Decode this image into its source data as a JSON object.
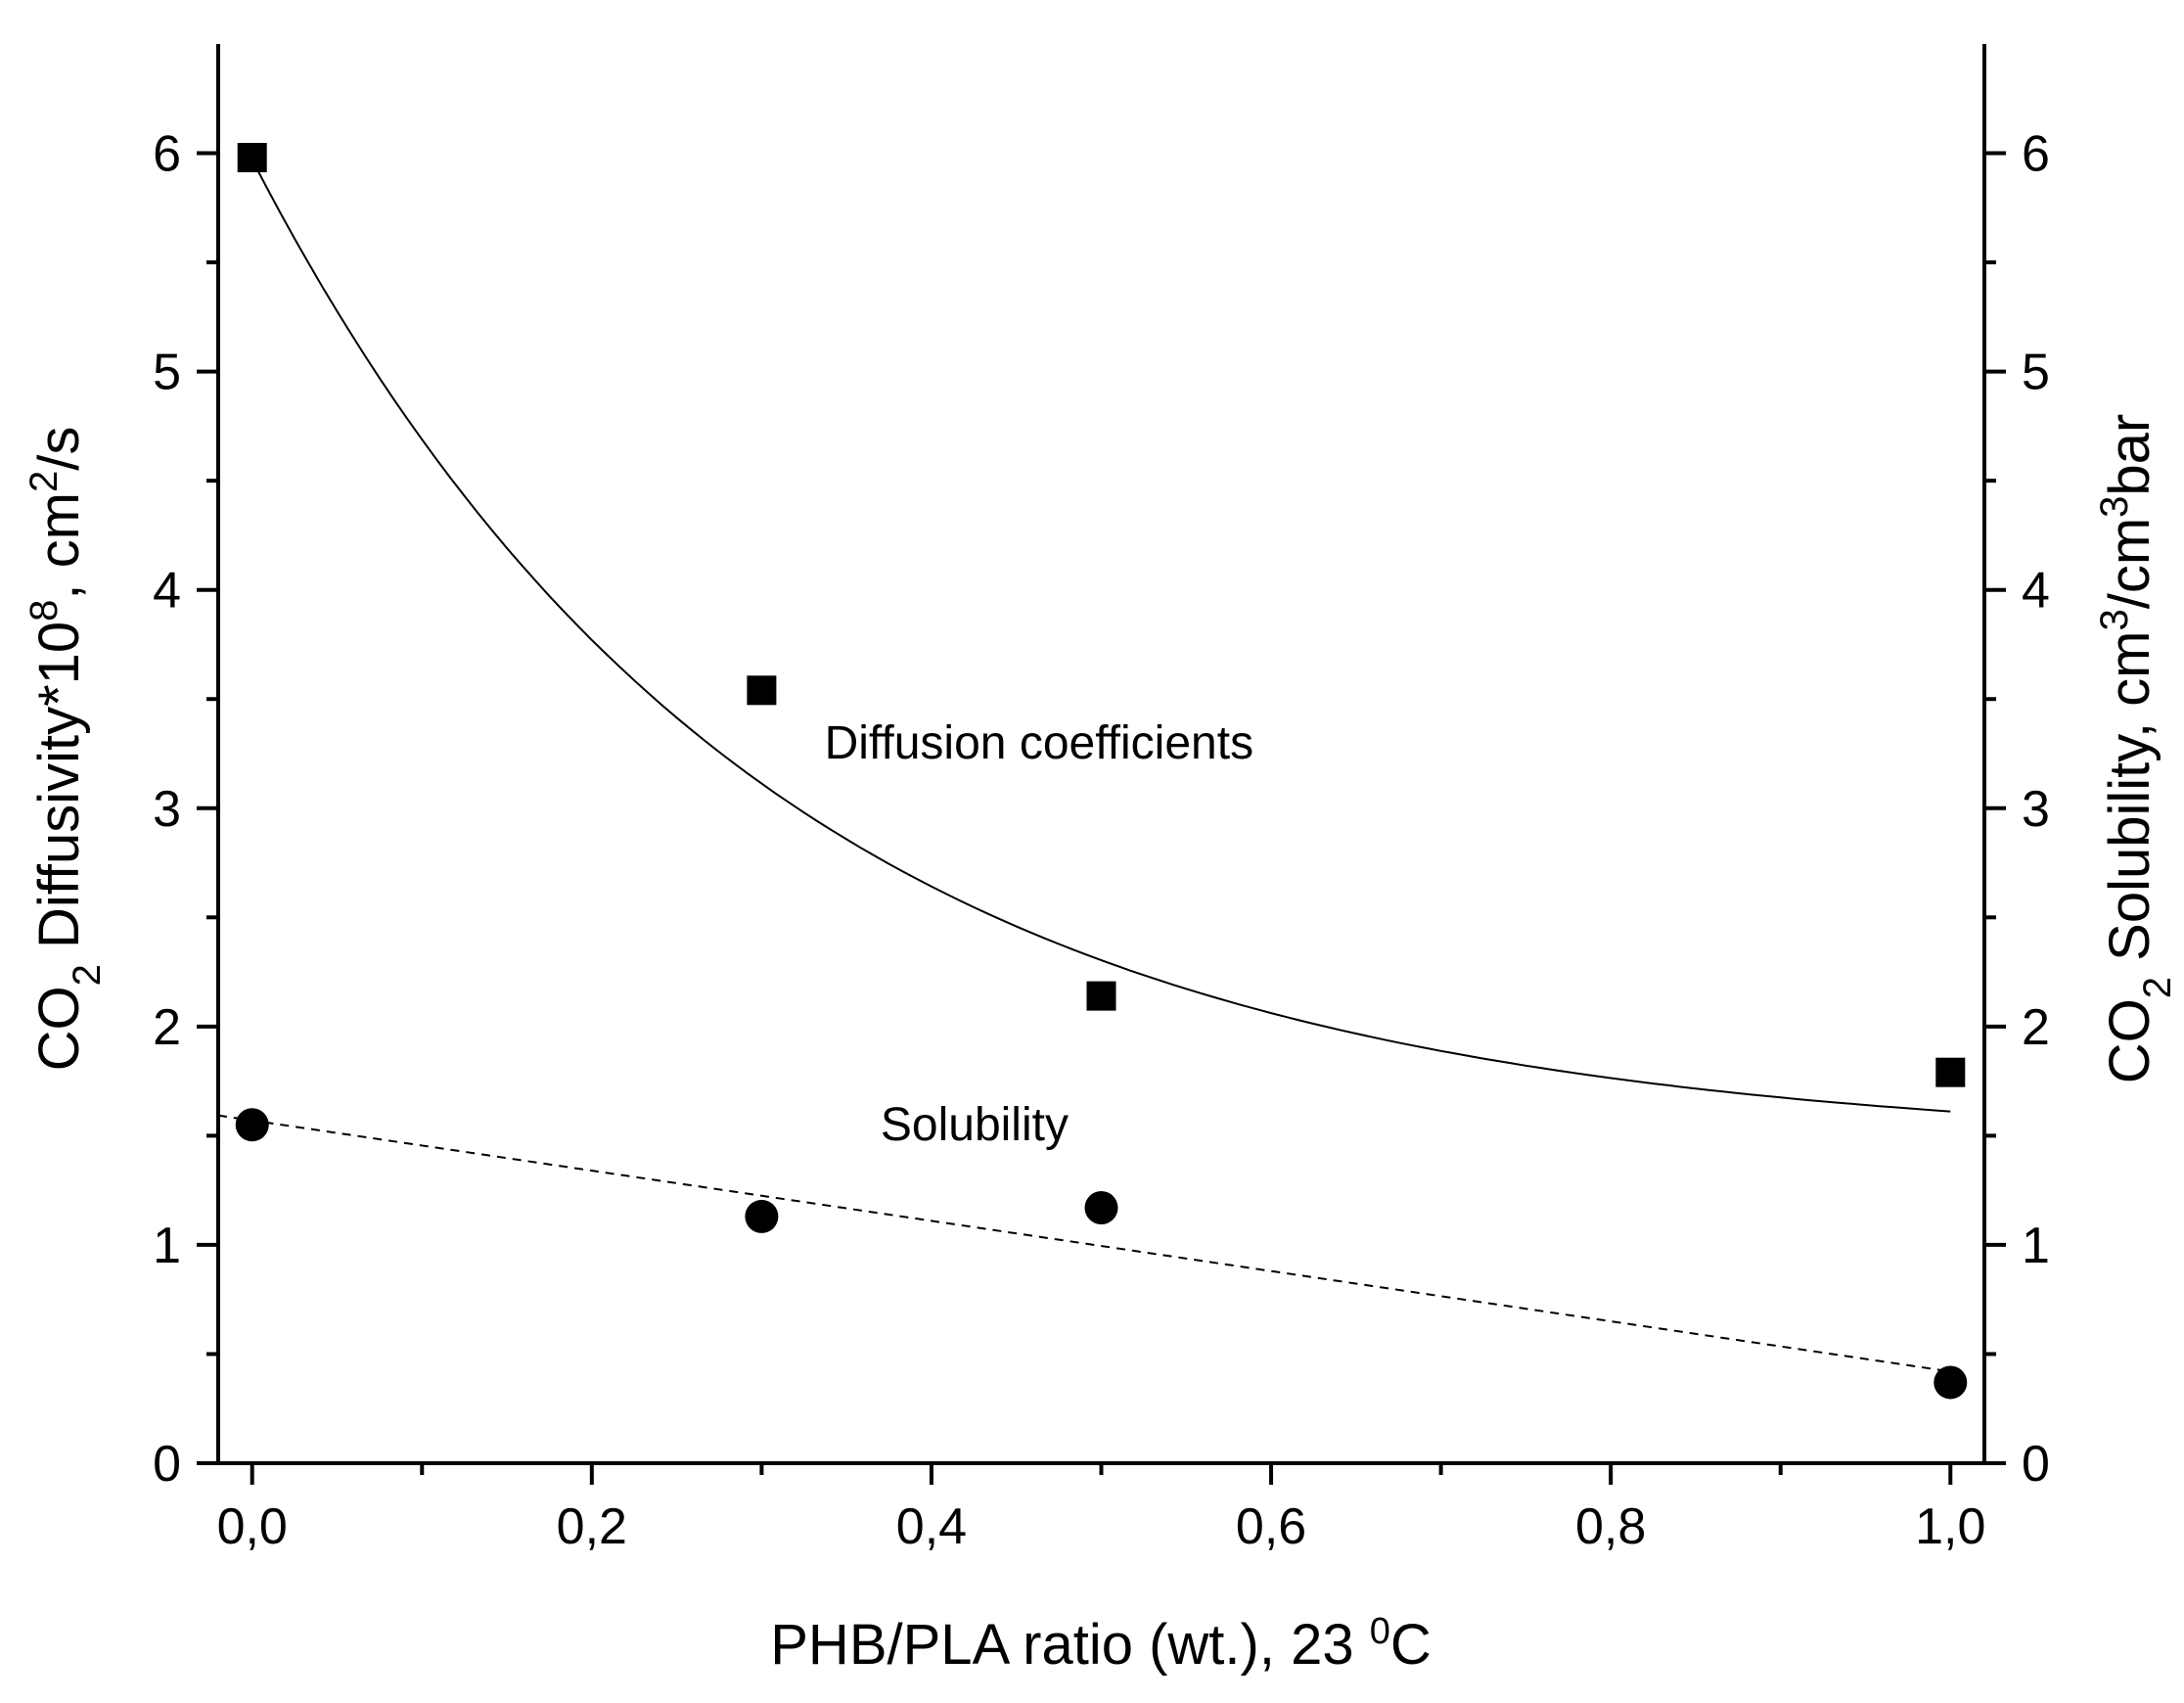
{
  "chart_data": {
    "type": "scatter",
    "x_axis": {
      "label": "PHB/PLA ratio (wt.), 23 ",
      "label_sup": "0",
      "label_tail": "C",
      "range": [
        -0.02,
        1.02
      ],
      "major_ticks": [
        0.0,
        0.2,
        0.4,
        0.6,
        0.8,
        1.0
      ],
      "tick_labels": [
        "0,0",
        "0,2",
        "0,4",
        "0,6",
        "0,8",
        "1,0"
      ],
      "minor_ticks": [
        0.1,
        0.3,
        0.5,
        0.7,
        0.9
      ]
    },
    "y_left": {
      "label_parts": {
        "a": "CO",
        "sub": "2",
        "b": " Diffusivity*10",
        "sup1": "8",
        "c": ", cm",
        "sup2": "2",
        "d": "/s"
      },
      "range": [
        0,
        6.5
      ],
      "major_ticks": [
        0,
        1,
        2,
        3,
        4,
        5,
        6
      ],
      "tick_labels": [
        "0",
        "1",
        "2",
        "3",
        "4",
        "5",
        "6"
      ],
      "minor_ticks": [
        0.5,
        1.5,
        2.5,
        3.5,
        4.5,
        5.5
      ]
    },
    "y_right": {
      "label_parts": {
        "a": "CO",
        "sub": "2",
        "b": " Solubility, cm",
        "sup1": "3",
        "c": "/cm",
        "sup2": "3",
        "d": "bar"
      },
      "range": [
        0,
        6.5
      ],
      "major_ticks": [
        0,
        1,
        2,
        3,
        4,
        5,
        6
      ],
      "tick_labels": [
        "0",
        "1",
        "2",
        "3",
        "4",
        "5",
        "6"
      ],
      "minor_ticks": [
        0.5,
        1.5,
        2.5,
        3.5,
        4.5,
        5.5
      ]
    },
    "series": [
      {
        "name": "Diffusion coefficients",
        "marker": "square",
        "axis": "left",
        "x": [
          0.0,
          0.3,
          0.5,
          1.0
        ],
        "y": [
          5.98,
          3.54,
          2.14,
          1.79
        ],
        "fit": {
          "style": "solid",
          "model": "exponential",
          "y0": 1.45,
          "A": 4.52,
          "t": 0.3,
          "x_range": [
            0.0,
            1.0
          ]
        }
      },
      {
        "name": "Solubility",
        "marker": "circle",
        "axis": "right",
        "x": [
          0.0,
          0.3,
          0.5,
          1.0
        ],
        "y": [
          1.55,
          1.13,
          1.17,
          0.37
        ],
        "fit": {
          "style": "dashed",
          "model": "linear",
          "intercept": 1.57,
          "slope": -1.15,
          "x_range": [
            -0.02,
            1.0
          ]
        }
      }
    ],
    "annotations": [
      {
        "text": "Diffusion coefficients",
        "x": 0.337,
        "y": 3.3
      },
      {
        "text": "Solubility",
        "x": 0.37,
        "y": 1.55
      }
    ]
  }
}
